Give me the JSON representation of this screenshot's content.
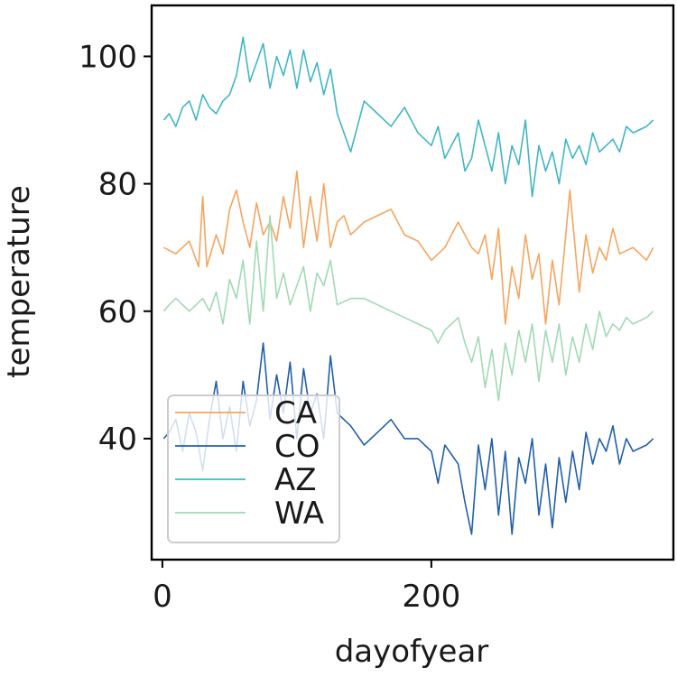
{
  "chart_data": {
    "type": "line",
    "title": "",
    "xlabel": "dayofyear",
    "ylabel": "temperature",
    "xlim": [
      -8,
      380
    ],
    "ylim": [
      21,
      108
    ],
    "xticks": [
      0,
      200
    ],
    "yticks": [
      40,
      60,
      80,
      100
    ],
    "grid": false,
    "legend_position": "bottom-left",
    "series": [
      {
        "name": "CA",
        "color": "#f5a55e",
        "x": [
          1,
          10,
          20,
          27,
          30,
          33,
          40,
          45,
          50,
          55,
          60,
          65,
          70,
          75,
          80,
          85,
          90,
          95,
          100,
          105,
          110,
          115,
          120,
          125,
          130,
          135,
          140,
          150,
          160,
          170,
          180,
          190,
          200,
          210,
          220,
          230,
          235,
          240,
          245,
          250,
          255,
          260,
          265,
          270,
          275,
          280,
          285,
          290,
          295,
          300,
          303,
          310,
          315,
          320,
          325,
          330,
          335,
          340,
          350,
          360,
          365
        ],
        "y": [
          70,
          69,
          71,
          67,
          78,
          67,
          72,
          69,
          76,
          79,
          74,
          70,
          77,
          72,
          74,
          71,
          78,
          73,
          82,
          70,
          78,
          71,
          80,
          70,
          74,
          75,
          72,
          74,
          75,
          76,
          72,
          71,
          68,
          70,
          74,
          70,
          69,
          72,
          65,
          73,
          58,
          67,
          62,
          72,
          65,
          69,
          58,
          68,
          61,
          72,
          79,
          63,
          72,
          66,
          70,
          68,
          73,
          69,
          70,
          68,
          70
        ]
      },
      {
        "name": "CO",
        "color": "#2160a8",
        "x": [
          1,
          5,
          10,
          15,
          20,
          25,
          30,
          35,
          40,
          45,
          50,
          55,
          60,
          65,
          70,
          75,
          80,
          85,
          90,
          95,
          100,
          105,
          110,
          115,
          120,
          125,
          130,
          140,
          150,
          160,
          170,
          180,
          190,
          200,
          205,
          210,
          220,
          225,
          230,
          235,
          240,
          245,
          250,
          255,
          260,
          265,
          270,
          275,
          280,
          285,
          290,
          295,
          300,
          305,
          310,
          315,
          320,
          325,
          330,
          335,
          340,
          345,
          350,
          360,
          365
        ],
        "y": [
          40,
          41,
          43,
          38,
          44,
          41,
          35,
          43,
          49,
          40,
          45,
          38,
          49,
          42,
          46,
          55,
          43,
          50,
          44,
          52,
          40,
          51,
          44,
          47,
          40,
          53,
          44,
          42,
          39,
          41,
          43,
          40,
          40,
          38,
          33,
          39,
          36,
          30,
          25,
          39,
          32,
          40,
          28,
          38,
          25,
          37,
          33,
          40,
          28,
          36,
          26,
          37,
          30,
          38,
          32,
          41,
          36,
          40,
          38,
          42,
          36,
          40,
          38,
          39,
          40
        ]
      },
      {
        "name": "AZ",
        "color": "#41b6c4",
        "x": [
          1,
          5,
          10,
          15,
          20,
          25,
          30,
          35,
          40,
          45,
          50,
          55,
          60,
          65,
          70,
          75,
          80,
          85,
          90,
          95,
          100,
          105,
          110,
          115,
          120,
          125,
          130,
          140,
          150,
          160,
          170,
          180,
          190,
          200,
          205,
          210,
          220,
          225,
          230,
          235,
          240,
          245,
          250,
          255,
          260,
          265,
          270,
          275,
          280,
          285,
          290,
          295,
          300,
          305,
          310,
          315,
          320,
          325,
          330,
          335,
          340,
          345,
          350,
          360,
          365
        ],
        "y": [
          90,
          91,
          89,
          92,
          93,
          90,
          94,
          92,
          91,
          93,
          94,
          97,
          103,
          96,
          99,
          102,
          95,
          100,
          97,
          101,
          95,
          101,
          96,
          99,
          94,
          98,
          91,
          85,
          93,
          91,
          89,
          92,
          88,
          86,
          89,
          84,
          88,
          82,
          84,
          90,
          86,
          82,
          88,
          80,
          86,
          83,
          90,
          78,
          86,
          82,
          85,
          80,
          87,
          84,
          86,
          83,
          88,
          85,
          86,
          87,
          85,
          89,
          88,
          89,
          90
        ]
      },
      {
        "name": "WA",
        "color": "#a1dab4",
        "x": [
          1,
          5,
          10,
          15,
          20,
          25,
          30,
          35,
          40,
          45,
          50,
          55,
          60,
          65,
          70,
          75,
          80,
          85,
          90,
          95,
          100,
          105,
          110,
          115,
          120,
          125,
          130,
          140,
          150,
          160,
          170,
          180,
          190,
          200,
          205,
          210,
          220,
          225,
          230,
          235,
          240,
          245,
          250,
          255,
          260,
          265,
          270,
          275,
          280,
          285,
          290,
          295,
          300,
          305,
          310,
          315,
          320,
          325,
          330,
          335,
          340,
          345,
          350,
          360,
          365
        ],
        "y": [
          60,
          61,
          62,
          61,
          60,
          61,
          62,
          60,
          63,
          58,
          65,
          62,
          68,
          58,
          71,
          60,
          75,
          62,
          66,
          61,
          64,
          67,
          60,
          66,
          64,
          68,
          61,
          62,
          62,
          61,
          60,
          59,
          58,
          57,
          55,
          57,
          59,
          55,
          52,
          56,
          48,
          54,
          46,
          55,
          50,
          57,
          52,
          58,
          49,
          57,
          52,
          58,
          50,
          56,
          52,
          58,
          54,
          60,
          56,
          58,
          57,
          59,
          58,
          59,
          60
        ]
      }
    ]
  }
}
